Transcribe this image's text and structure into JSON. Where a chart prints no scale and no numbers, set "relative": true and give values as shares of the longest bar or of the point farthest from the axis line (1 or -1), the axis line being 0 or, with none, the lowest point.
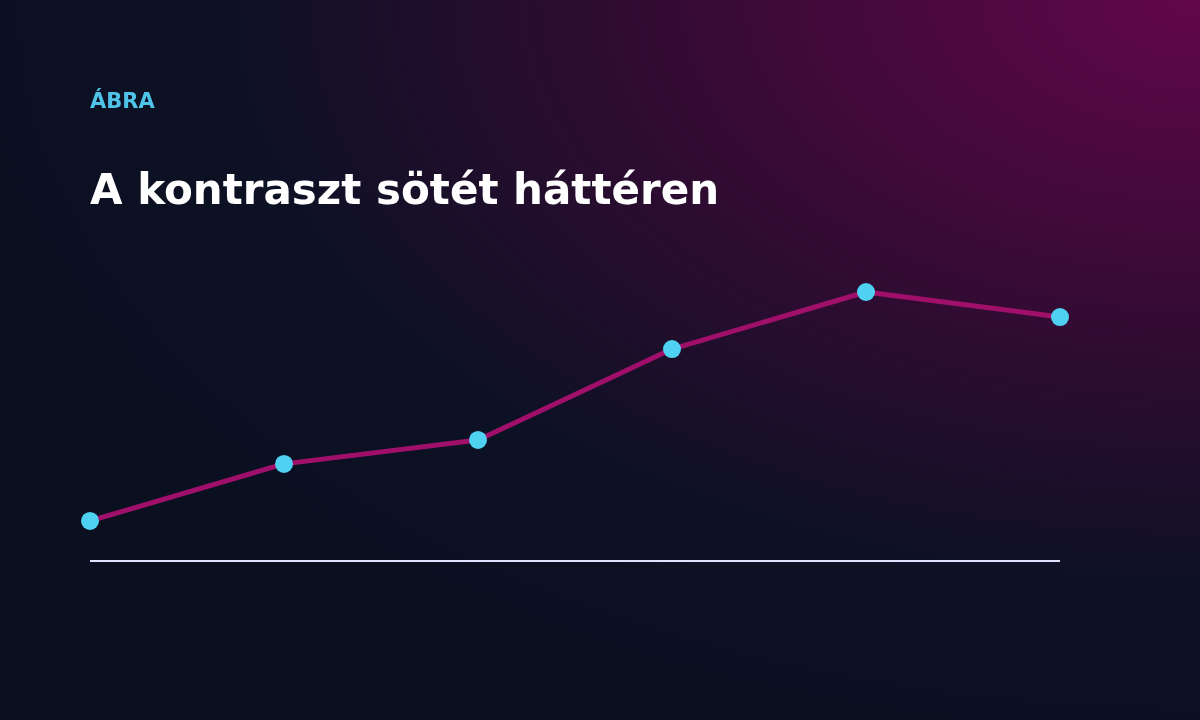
{
  "chart_data": {
    "type": "line",
    "subtitle": "ÁBRA",
    "title": "A kontraszt sötét háttéren",
    "relative": true,
    "categories": [
      null,
      null,
      null,
      null,
      null,
      null
    ],
    "series": [
      {
        "color": "#a0106a",
        "values": [
          0.149,
          0.361,
          0.45,
          0.788,
          1,
          0.907
        ]
      }
    ],
    "marker": "circle",
    "line_style": "solid"
  }
}
